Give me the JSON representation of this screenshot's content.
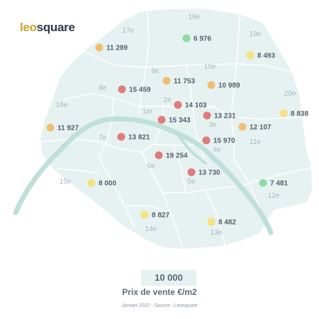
{
  "logo": {
    "left_part": "leo",
    "right_part": "square"
  },
  "legend": {
    "value": "10 000",
    "label": "Prix de vente €/m2"
  },
  "source": "Janvier 2022 - Source : Leosquare",
  "colors": {
    "map_fill": "#e6f2f1",
    "map_border": "#ffffff",
    "river": "#bfe0d8",
    "arrondissement_label": "#a7b5bf",
    "price_label": "#55606b",
    "price_high": "#e07a7b",
    "price_mid": "#f0be73",
    "price_low": "#f6e27f",
    "price_lowest": "#8fd9a8"
  },
  "arrondissements": [
    {
      "id": "1er",
      "label": "1er"
    },
    {
      "id": "2e",
      "label": "2e"
    },
    {
      "id": "3e",
      "label": "3e"
    },
    {
      "id": "4e",
      "label": "4e"
    },
    {
      "id": "5e",
      "label": "5e"
    },
    {
      "id": "6e",
      "label": "6e"
    },
    {
      "id": "7e",
      "label": "7e"
    },
    {
      "id": "8e",
      "label": "8e"
    },
    {
      "id": "9e",
      "label": "9e"
    },
    {
      "id": "10e",
      "label": "10e"
    },
    {
      "id": "11e",
      "label": "11e"
    },
    {
      "id": "12e",
      "label": "12e"
    },
    {
      "id": "13e",
      "label": "13e"
    },
    {
      "id": "14e",
      "label": "14e"
    },
    {
      "id": "15e",
      "label": "15e"
    },
    {
      "id": "16e",
      "label": "16e"
    },
    {
      "id": "17e",
      "label": "17e"
    },
    {
      "id": "18e",
      "label": "18e"
    },
    {
      "id": "19e",
      "label": "19e"
    },
    {
      "id": "20e",
      "label": "20e"
    }
  ],
  "prices": [
    {
      "arr": "18e",
      "value": "6 976",
      "tier": "lowest"
    },
    {
      "arr": "17e",
      "value": "11 289",
      "tier": "mid"
    },
    {
      "arr": "19e",
      "value": "8 493",
      "tier": "low"
    },
    {
      "arr": "9e",
      "value": "11 753",
      "tier": "mid"
    },
    {
      "arr": "8e",
      "value": "15 459",
      "tier": "high"
    },
    {
      "arr": "10e",
      "value": "10 989",
      "tier": "mid"
    },
    {
      "arr": "2e",
      "value": "14 103",
      "tier": "high"
    },
    {
      "arr": "1er",
      "value": "15 343",
      "tier": "high"
    },
    {
      "arr": "3e",
      "value": "13 231",
      "tier": "high"
    },
    {
      "arr": "20e",
      "value": "8 838",
      "tier": "low"
    },
    {
      "arr": "16e",
      "value": "11 927",
      "tier": "mid"
    },
    {
      "arr": "11e",
      "value": "12 107",
      "tier": "mid"
    },
    {
      "arr": "7e",
      "value": "13 821",
      "tier": "high"
    },
    {
      "arr": "4e",
      "value": "15 970",
      "tier": "high"
    },
    {
      "arr": "6e",
      "value": "19 254",
      "tier": "high"
    },
    {
      "arr": "5e",
      "value": "13 730",
      "tier": "high"
    },
    {
      "arr": "15e",
      "value": "8 000",
      "tier": "low"
    },
    {
      "arr": "12e",
      "value": "7 481",
      "tier": "lowest"
    },
    {
      "arr": "14e",
      "value": "8 827",
      "tier": "low"
    },
    {
      "arr": "13e",
      "value": "8 482",
      "tier": "low"
    }
  ]
}
